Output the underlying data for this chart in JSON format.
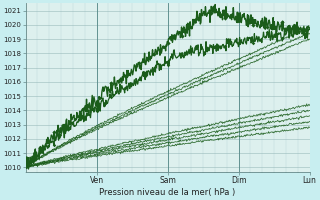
{
  "bg_color": "#c8eef0",
  "plot_bg": "#ddf0ee",
  "grid_color": "#b0cccc",
  "line_color": "#1a5c1a",
  "title": "Pression niveau de la mer( hPa )",
  "ylabel_values": [
    1010,
    1011,
    1012,
    1013,
    1014,
    1015,
    1016,
    1017,
    1018,
    1019,
    1020,
    1021
  ],
  "ylim": [
    1009.7,
    1021.5
  ],
  "xlim": [
    0,
    96
  ],
  "xtick_positions": [
    24,
    48,
    72,
    96
  ],
  "xtick_labels": [
    "Ven",
    "Sam",
    "Dim",
    "Lun"
  ],
  "figsize": [
    3.2,
    2.0
  ],
  "dpi": 100
}
